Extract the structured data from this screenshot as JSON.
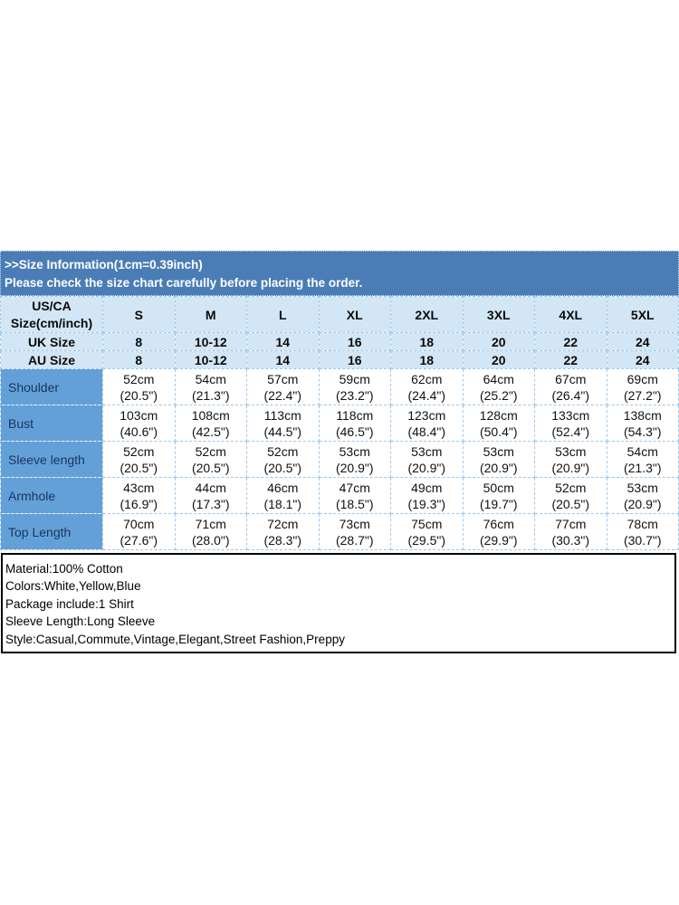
{
  "banner": {
    "line1": ">>Size Information(1cm=0.39inch)",
    "line2": "Please check the size chart carefully before placing the order."
  },
  "colors": {
    "banner_bg": "#4a7db6",
    "banner_text": "#ffffff",
    "header_cell_bg": "#d2e6f5",
    "label_cell_bg": "#64a0d8",
    "label_text": "#17365d",
    "cell_border": "#9ec7e8",
    "details_border": "#000000"
  },
  "size_table": {
    "corner_label": [
      "US/CA",
      "Size(cm/inch)"
    ],
    "size_columns": [
      "S",
      "M",
      "L",
      "XL",
      "2XL",
      "3XL",
      "4XL",
      "5XL"
    ],
    "sub_rows": [
      {
        "label": "UK Size",
        "values": [
          "8",
          "10-12",
          "14",
          "16",
          "18",
          "20",
          "22",
          "24"
        ]
      },
      {
        "label": "AU Size",
        "values": [
          "8",
          "10-12",
          "14",
          "16",
          "18",
          "20",
          "22",
          "24"
        ]
      }
    ],
    "measurement_rows": [
      {
        "label": "Shoulder",
        "values": [
          {
            "cm": "52cm",
            "in": "(20.5\")"
          },
          {
            "cm": "54cm",
            "in": "(21.3\")"
          },
          {
            "cm": "57cm",
            "in": "(22.4\")"
          },
          {
            "cm": "59cm",
            "in": "(23.2\")"
          },
          {
            "cm": "62cm",
            "in": "(24.4\")"
          },
          {
            "cm": "64cm",
            "in": "(25.2\")"
          },
          {
            "cm": "67cm",
            "in": "(26.4\")"
          },
          {
            "cm": "69cm",
            "in": "(27.2\")"
          }
        ]
      },
      {
        "label": "Bust",
        "values": [
          {
            "cm": "103cm",
            "in": "(40.6\")"
          },
          {
            "cm": "108cm",
            "in": "(42.5\")"
          },
          {
            "cm": "113cm",
            "in": "(44.5\")"
          },
          {
            "cm": "118cm",
            "in": "(46.5\")"
          },
          {
            "cm": "123cm",
            "in": "(48.4\")"
          },
          {
            "cm": "128cm",
            "in": "(50.4\")"
          },
          {
            "cm": "133cm",
            "in": "(52.4\")"
          },
          {
            "cm": "138cm",
            "in": "(54.3\")"
          }
        ]
      },
      {
        "label": "Sleeve length",
        "values": [
          {
            "cm": "52cm",
            "in": "(20.5\")"
          },
          {
            "cm": "52cm",
            "in": "(20.5\")"
          },
          {
            "cm": "52cm",
            "in": "(20.5\")"
          },
          {
            "cm": "53cm",
            "in": "(20.9\")"
          },
          {
            "cm": "53cm",
            "in": "(20.9\")"
          },
          {
            "cm": "53cm",
            "in": "(20.9\")"
          },
          {
            "cm": "53cm",
            "in": "(20.9\")"
          },
          {
            "cm": "54cm",
            "in": "(21.3\")"
          }
        ]
      },
      {
        "label": "Armhole",
        "values": [
          {
            "cm": "43cm",
            "in": "(16.9\")"
          },
          {
            "cm": "44cm",
            "in": "(17.3\")"
          },
          {
            "cm": "46cm",
            "in": "(18.1\")"
          },
          {
            "cm": "47cm",
            "in": "(18.5\")"
          },
          {
            "cm": "49cm",
            "in": "(19.3\")"
          },
          {
            "cm": "50cm",
            "in": "(19.7\")"
          },
          {
            "cm": "52cm",
            "in": "(20.5\")"
          },
          {
            "cm": "53cm",
            "in": "(20.9\")"
          }
        ]
      },
      {
        "label": "Top Length",
        "values": [
          {
            "cm": "70cm",
            "in": "(27.6\")"
          },
          {
            "cm": "71cm",
            "in": "(28.0\")"
          },
          {
            "cm": "72cm",
            "in": "(28.3\")"
          },
          {
            "cm": "73cm",
            "in": "(28.7\")"
          },
          {
            "cm": "75cm",
            "in": "(29.5\")"
          },
          {
            "cm": "76cm",
            "in": "(29.9\")"
          },
          {
            "cm": "77cm",
            "in": "(30.3\")"
          },
          {
            "cm": "78cm",
            "in": "(30.7\")"
          }
        ]
      }
    ]
  },
  "details": {
    "lines": [
      "Material:100% Cotton",
      "Colors:White,Yellow,Blue",
      "Package include:1 Shirt",
      "Sleeve Length:Long Sleeve",
      "Style:Casual,Commute,Vintage,Elegant,Street Fashion,Preppy"
    ]
  }
}
